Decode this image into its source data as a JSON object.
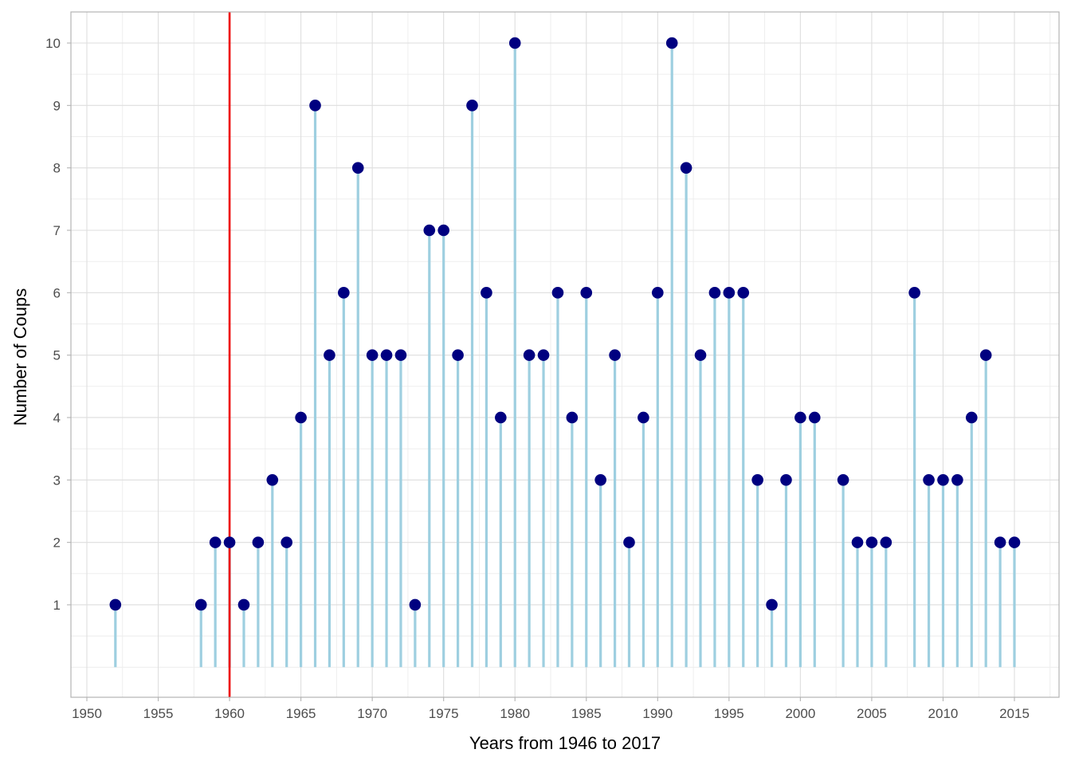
{
  "chart_data": {
    "type": "lollipop",
    "title": "",
    "xlabel": "Years from 1946 to 2017",
    "ylabel": "Number of Coups",
    "xlim": [
      1948.9,
      2018.1
    ],
    "ylim": [
      -0.48,
      10.48
    ],
    "x_ticks": [
      1950,
      1955,
      1960,
      1965,
      1970,
      1975,
      1980,
      1985,
      1990,
      1995,
      2000,
      2005,
      2010,
      2015
    ],
    "y_ticks": [
      1,
      2,
      3,
      4,
      5,
      6,
      7,
      8,
      9,
      10
    ],
    "grid": true,
    "legend": null,
    "reference_line": {
      "axis": "x",
      "value": 1960,
      "color": "#ee0000"
    },
    "stem_color": "#9ecfe0",
    "point_color": "#000080",
    "x": [
      1952,
      1958,
      1959,
      1960,
      1961,
      1962,
      1963,
      1964,
      1965,
      1966,
      1967,
      1968,
      1969,
      1970,
      1971,
      1972,
      1973,
      1974,
      1975,
      1976,
      1977,
      1978,
      1979,
      1980,
      1981,
      1982,
      1983,
      1984,
      1985,
      1986,
      1987,
      1988,
      1989,
      1990,
      1991,
      1992,
      1993,
      1994,
      1995,
      1996,
      1997,
      1998,
      1999,
      2000,
      2001,
      2003,
      2004,
      2005,
      2006,
      2008,
      2009,
      2010,
      2011,
      2012,
      2013,
      2014,
      2015
    ],
    "values": [
      1,
      1,
      2,
      2,
      1,
      2,
      3,
      2,
      4,
      9,
      5,
      6,
      8,
      5,
      5,
      5,
      1,
      7,
      7,
      5,
      9,
      6,
      4,
      10,
      5,
      5,
      6,
      4,
      6,
      3,
      5,
      2,
      4,
      6,
      10,
      8,
      5,
      6,
      6,
      6,
      3,
      1,
      3,
      4,
      4,
      3,
      2,
      2,
      2,
      6,
      3,
      3,
      3,
      4,
      5,
      2,
      2
    ]
  }
}
